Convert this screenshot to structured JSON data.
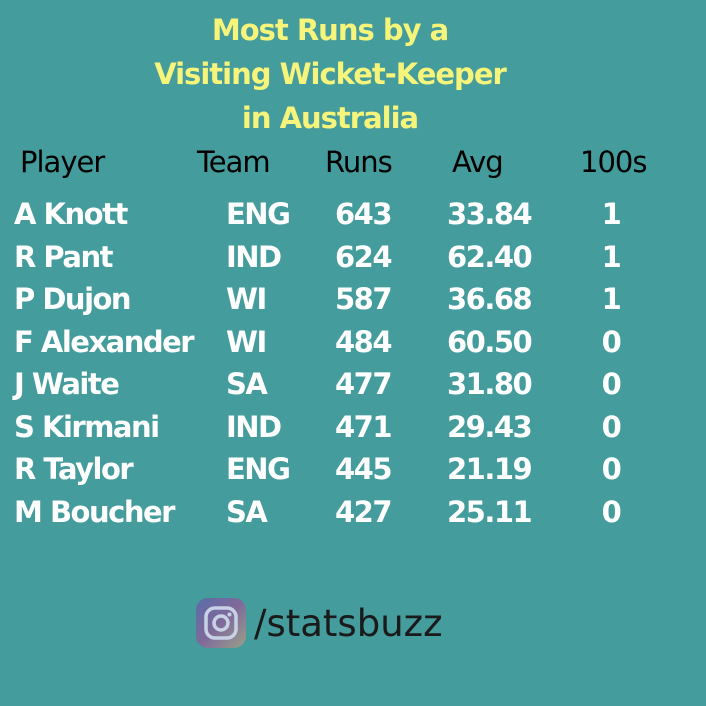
{
  "title": {
    "line1": "Most Runs by a",
    "line2": "Visiting Wicket-Keeper",
    "line3": "in Australia"
  },
  "table": {
    "headers": {
      "player": "Player",
      "team": "Team",
      "runs": "Runs",
      "avg": "Avg",
      "hundreds": "100s"
    },
    "rows": [
      {
        "player": "A Knott",
        "team": "ENG",
        "runs": "643",
        "avg": "33.84",
        "hundreds": "1"
      },
      {
        "player": "R Pant",
        "team": "IND",
        "runs": "624",
        "avg": "62.40",
        "hundreds": "1"
      },
      {
        "player": "P Dujon",
        "team": "WI",
        "runs": "587",
        "avg": "36.68",
        "hundreds": "1"
      },
      {
        "player": "F Alexander",
        "team": "WI",
        "runs": "484",
        "avg": "60.50",
        "hundreds": "0"
      },
      {
        "player": "J Waite",
        "team": "SA",
        "runs": "477",
        "avg": "31.80",
        "hundreds": "0"
      },
      {
        "player": "S Kirmani",
        "team": "IND",
        "runs": "471",
        "avg": "29.43",
        "hundreds": "0"
      },
      {
        "player": "R Taylor",
        "team": "ENG",
        "runs": "445",
        "avg": "21.19",
        "hundreds": "0"
      },
      {
        "player": "M Boucher",
        "team": "SA",
        "runs": "427",
        "avg": "25.11",
        "hundreds": "0"
      }
    ]
  },
  "brand": {
    "icon": "instagram-icon",
    "handle": "/statsbuzz"
  },
  "colors": {
    "background": "#449c9c",
    "title": "#f6f47a",
    "header_text": "#000000",
    "row_text": "#ffffff"
  }
}
